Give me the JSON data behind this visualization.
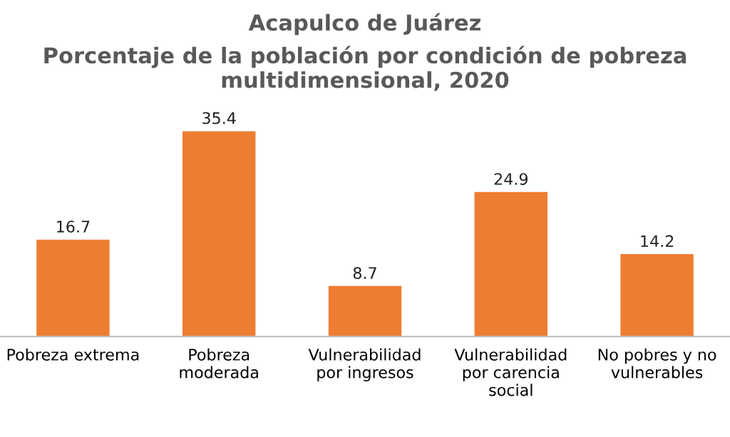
{
  "chart_data": {
    "type": "bar",
    "title": "Acapulco de Juárez",
    "subtitle": "Porcentaje de la población por condición de pobreza multidimensional, 2020",
    "categories": [
      "Pobreza extrema",
      "Pobreza moderada",
      "Vulnerabilidad por ingresos",
      "Vulnerabilidad por carencia social",
      "No pobres y no vulnerables"
    ],
    "values": [
      16.7,
      35.4,
      8.7,
      24.9,
      14.2
    ],
    "color": "#ed7d31",
    "data_labels": true,
    "grid": false,
    "legend": false
  }
}
